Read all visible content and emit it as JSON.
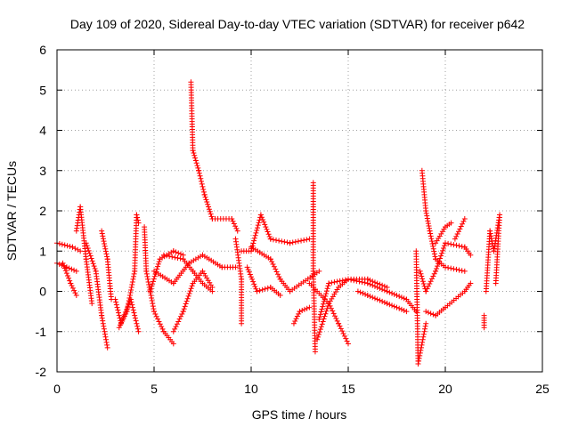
{
  "chart_data": {
    "type": "scatter",
    "title": "Day 109 of 2020, Sidereal Day-to-day VTEC variation (SDTVAR) for receiver p642",
    "xlabel": "GPS time / hours",
    "ylabel": "SDTVAR / TECUs",
    "xlim": [
      0,
      25
    ],
    "ylim": [
      -2,
      6
    ],
    "xticks": [
      "0",
      "5",
      "10",
      "15",
      "20",
      "25"
    ],
    "yticks": [
      "-2",
      "-1",
      "0",
      "1",
      "2",
      "3",
      "4",
      "5",
      "6"
    ],
    "grid": true,
    "marker": "+",
    "color": "#ff0000",
    "tracks": [
      [
        [
          0,
          0.7
        ],
        [
          0.5,
          0.6
        ],
        [
          1,
          0.5
        ]
      ],
      [
        [
          0,
          1.2
        ],
        [
          0.8,
          1.1
        ],
        [
          1.2,
          1.0
        ]
      ],
      [
        [
          0.3,
          0.7
        ],
        [
          0.7,
          0.2
        ],
        [
          1,
          -0.1
        ]
      ],
      [
        [
          1,
          1.5
        ],
        [
          1.2,
          2.1
        ],
        [
          1.5,
          0.8
        ],
        [
          1.8,
          -0.3
        ]
      ],
      [
        [
          1.5,
          1.2
        ],
        [
          2,
          0.5
        ],
        [
          2.3,
          -0.6
        ],
        [
          2.6,
          -1.4
        ]
      ],
      [
        [
          2.3,
          1.5
        ],
        [
          2.6,
          0.8
        ],
        [
          2.8,
          -0.2
        ]
      ],
      [
        [
          3,
          -0.2
        ],
        [
          3.3,
          -0.8
        ],
        [
          3.6,
          -0.5
        ],
        [
          4,
          0.5
        ],
        [
          4.1,
          1.9
        ],
        [
          4.2,
          1.7
        ]
      ],
      [
        [
          3.2,
          -0.9
        ],
        [
          3.8,
          -0.2
        ],
        [
          4.2,
          -1.0
        ]
      ],
      [
        [
          4.5,
          1.6
        ],
        [
          4.6,
          0.5
        ],
        [
          5,
          -0.5
        ],
        [
          5.5,
          -1.0
        ],
        [
          6,
          -1.3
        ]
      ],
      [
        [
          4.8,
          0
        ],
        [
          5.3,
          0.8
        ],
        [
          6,
          1.0
        ],
        [
          6.5,
          0.9
        ]
      ],
      [
        [
          5,
          0.5
        ],
        [
          6,
          0.2
        ],
        [
          6.8,
          0.7
        ],
        [
          7.5,
          0.9
        ],
        [
          8.5,
          0.6
        ],
        [
          9.2,
          0.6
        ]
      ],
      [
        [
          6,
          -1.0
        ],
        [
          6.5,
          -0.5
        ],
        [
          7,
          0.2
        ],
        [
          7.5,
          0.5
        ],
        [
          8,
          0.1
        ]
      ],
      [
        [
          6.9,
          5.2
        ],
        [
          7,
          3.5
        ],
        [
          7.3,
          3.0
        ],
        [
          7.6,
          2.4
        ],
        [
          8,
          1.8
        ],
        [
          9,
          1.8
        ],
        [
          9.3,
          1.5
        ]
      ],
      [
        [
          5.5,
          0.9
        ],
        [
          6.5,
          0.8
        ],
        [
          7,
          0.5
        ],
        [
          7.5,
          0.2
        ],
        [
          8,
          0
        ]
      ],
      [
        [
          9.2,
          1.3
        ],
        [
          9.5,
          0.3
        ],
        [
          9.5,
          -0.8
        ]
      ],
      [
        [
          9.5,
          1.0
        ],
        [
          10,
          1.0
        ],
        [
          10.5,
          1.9
        ],
        [
          11,
          1.3
        ],
        [
          12,
          1.2
        ],
        [
          13,
          1.3
        ]
      ],
      [
        [
          9.8,
          0.6
        ],
        [
          10.3,
          0
        ],
        [
          11,
          0.1
        ],
        [
          11.5,
          -0.1
        ]
      ],
      [
        [
          10,
          1.1
        ],
        [
          11,
          0.8
        ],
        [
          11.5,
          0.3
        ],
        [
          12,
          0
        ],
        [
          13.5,
          0.5
        ]
      ],
      [
        [
          12.2,
          -0.8
        ],
        [
          12.5,
          -0.5
        ],
        [
          13,
          -0.4
        ]
      ],
      [
        [
          13.2,
          2.7
        ],
        [
          13.2,
          0.5
        ],
        [
          13.3,
          -1.5
        ]
      ],
      [
        [
          13.4,
          -1.2
        ],
        [
          14,
          -0.3
        ],
        [
          14.5,
          0.1
        ],
        [
          15,
          0.3
        ],
        [
          16,
          0.2
        ],
        [
          17,
          0
        ],
        [
          18,
          -0.2
        ],
        [
          18.5,
          -0.5
        ]
      ],
      [
        [
          13,
          0.2
        ],
        [
          14,
          -0.3
        ],
        [
          14.5,
          -0.8
        ],
        [
          15,
          -1.3
        ]
      ],
      [
        [
          13.5,
          -0.7
        ],
        [
          14,
          0.2
        ],
        [
          15,
          0.3
        ],
        [
          16,
          0.3
        ],
        [
          17,
          0.1
        ]
      ],
      [
        [
          15.5,
          0
        ],
        [
          16,
          -0.1
        ],
        [
          17,
          -0.3
        ],
        [
          18,
          -0.5
        ]
      ],
      [
        [
          18.5,
          1.0
        ],
        [
          18.6,
          -1.8
        ],
        [
          19,
          -0.8
        ]
      ],
      [
        [
          18.8,
          3.0
        ],
        [
          19,
          2.0
        ],
        [
          19.2,
          1.5
        ],
        [
          19.5,
          0.8
        ],
        [
          20,
          0.6
        ],
        [
          21,
          0.5
        ]
      ],
      [
        [
          19,
          -0.5
        ],
        [
          19.5,
          -0.6
        ],
        [
          20,
          -0.4
        ],
        [
          21,
          0
        ],
        [
          21.3,
          0.2
        ]
      ],
      [
        [
          18.7,
          0.5
        ],
        [
          19,
          0
        ],
        [
          19.5,
          0.5
        ],
        [
          20,
          1.2
        ],
        [
          21,
          1.1
        ],
        [
          21.3,
          0.9
        ]
      ],
      [
        [
          19.5,
          1.2
        ],
        [
          20,
          1.6
        ],
        [
          20.3,
          1.7
        ]
      ],
      [
        [
          20.5,
          1.3
        ],
        [
          21,
          1.8
        ]
      ],
      [
        [
          22,
          -0.6
        ],
        [
          22,
          -0.9
        ]
      ],
      [
        [
          22.1,
          0
        ],
        [
          22.3,
          1.5
        ],
        [
          22.5,
          1.0
        ],
        [
          22.8,
          1.9
        ],
        [
          22.6,
          0.2
        ]
      ]
    ]
  }
}
